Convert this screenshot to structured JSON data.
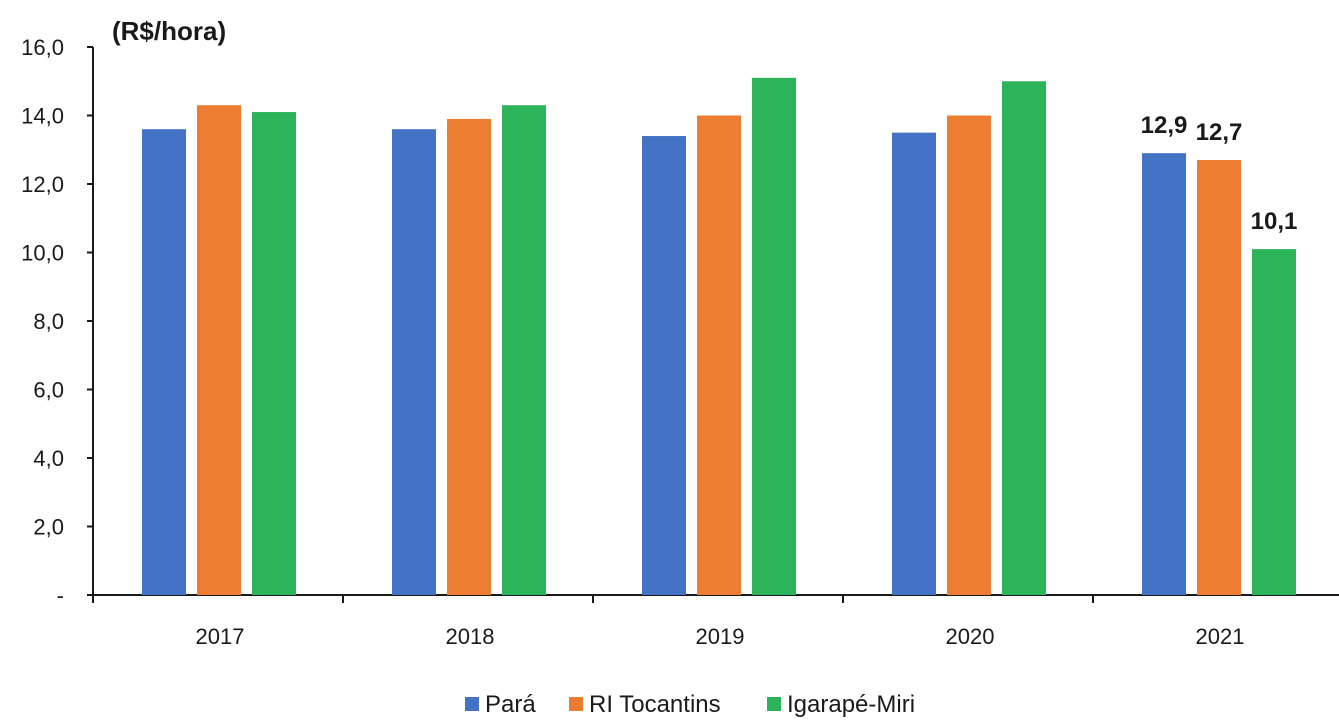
{
  "chart_data": {
    "type": "bar",
    "ylabel": "(R$/hora)",
    "ylim": [
      0,
      16
    ],
    "yticks": [
      0,
      2,
      4,
      6,
      8,
      10,
      12,
      14,
      16
    ],
    "ytick_labels": [
      "-",
      "2,0",
      "4,0",
      "6,0",
      "8,0",
      "10,0",
      "12,0",
      "14,0",
      "16,0"
    ],
    "categories": [
      "2017",
      "2018",
      "2019",
      "2020",
      "2021"
    ],
    "series": [
      {
        "name": "Pará",
        "color": "#4472C4",
        "values": [
          13.6,
          13.6,
          13.4,
          13.5,
          12.9
        ]
      },
      {
        "name": "RI Tocantins",
        "color": "#ED7D31",
        "values": [
          14.3,
          13.9,
          14.0,
          14.0,
          12.7
        ]
      },
      {
        "name": "Igarapé-Miri",
        "color": "#2DB35A",
        "values": [
          14.1,
          14.3,
          15.1,
          15.0,
          10.1
        ]
      }
    ],
    "data_labels": [
      {
        "series": 0,
        "category": 4,
        "text": "12,9"
      },
      {
        "series": 1,
        "category": 4,
        "text": "12,7"
      },
      {
        "series": 2,
        "category": 4,
        "text": "10,1"
      }
    ],
    "legend_position": "bottom",
    "grid": false
  }
}
